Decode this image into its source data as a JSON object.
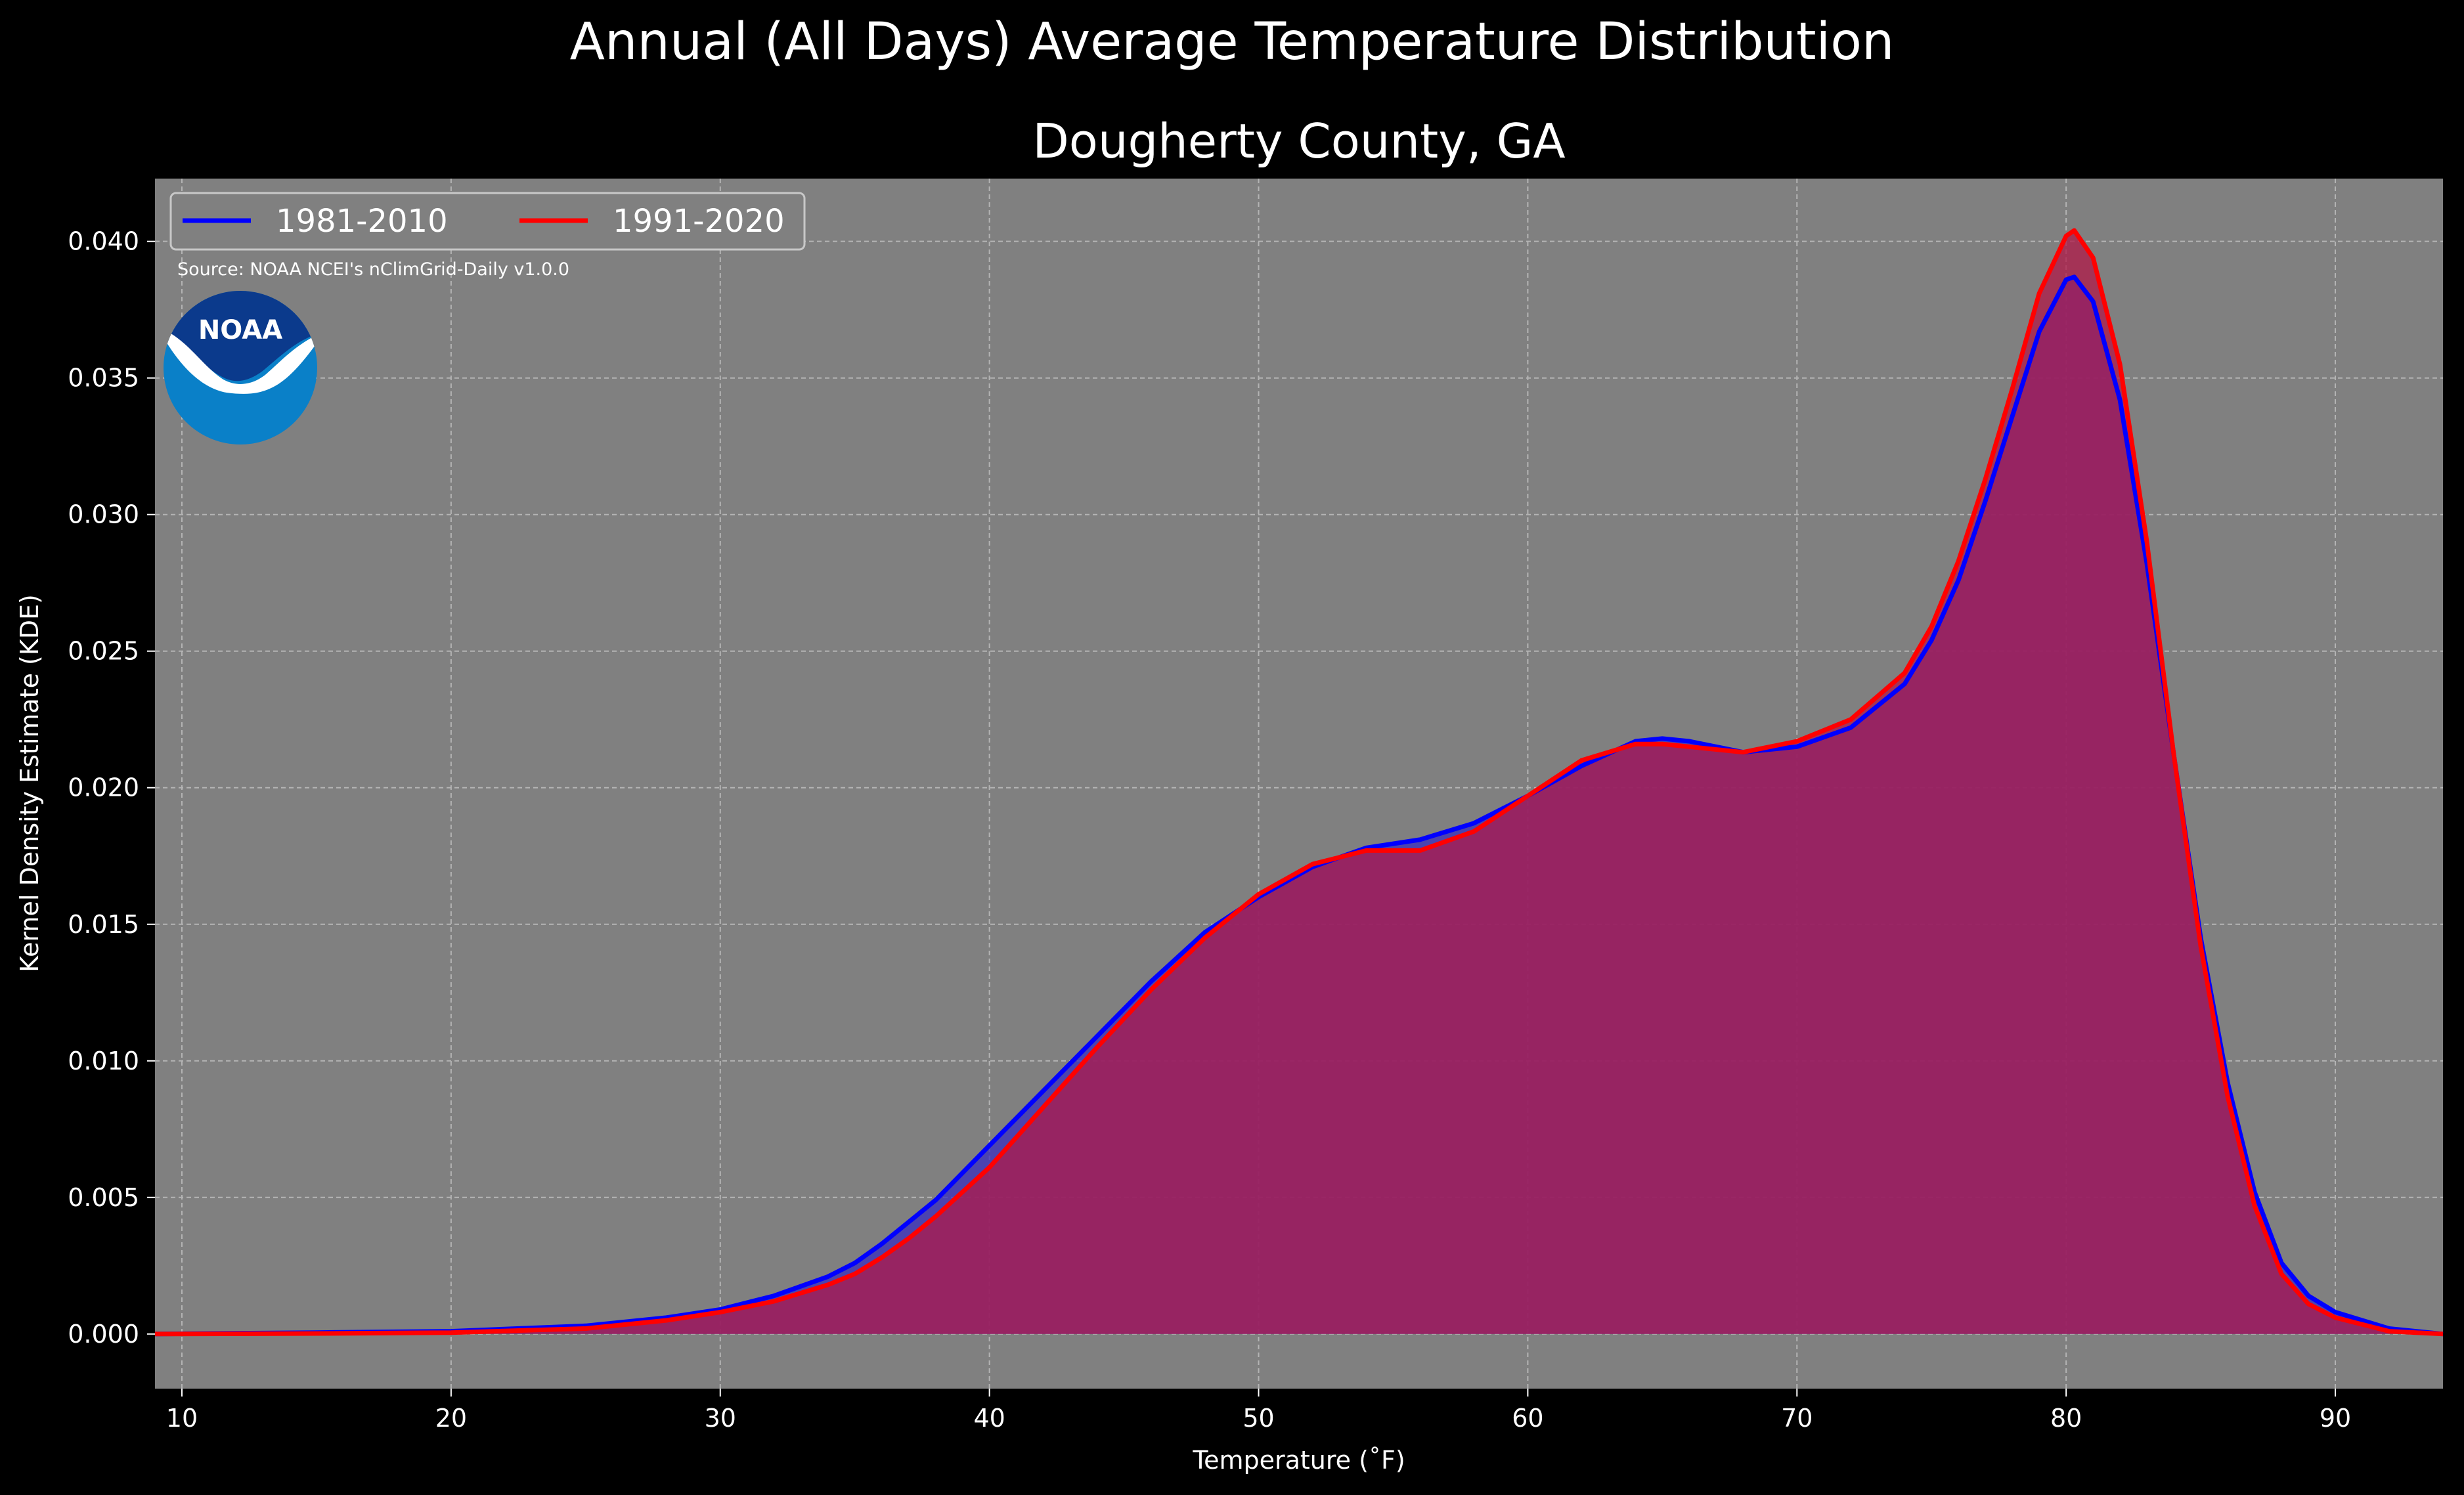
{
  "suptitle": "Annual (All Days) Average Temperature Distribution",
  "chart_data": {
    "type": "area",
    "title": "Dougherty County, GA",
    "xlabel": "Temperature ($^\\circ$F)",
    "xlabel_display": "Temperature (˚F)",
    "ylabel": "Kernel Density Estimate (KDE)",
    "xlim": [
      9,
      94
    ],
    "ylim": [
      -0.002,
      0.0423
    ],
    "xticks": [
      10,
      20,
      30,
      40,
      50,
      60,
      70,
      80,
      90
    ],
    "yticks": [
      0.0,
      0.005,
      0.01,
      0.015,
      0.02,
      0.025,
      0.03,
      0.035,
      0.04
    ],
    "ytick_labels": [
      "0.000",
      "0.005",
      "0.010",
      "0.015",
      "0.020",
      "0.025",
      "0.030",
      "0.035",
      "0.040"
    ],
    "grid": true,
    "legend_position": "top-left",
    "legend_ncol": 2,
    "background_color": "#808080",
    "figure_color": "#000000",
    "series": [
      {
        "name": "1981-2010",
        "color": "#0000ff",
        "fill_color": "#3a2fbf",
        "x": [
          9,
          15,
          20,
          25,
          28,
          30,
          32,
          34,
          35,
          36,
          37,
          38,
          40,
          42,
          44,
          46,
          48,
          50,
          52,
          54,
          56,
          58,
          60,
          62,
          64,
          65,
          66,
          68,
          70,
          72,
          74,
          75,
          76,
          77,
          78,
          79,
          80,
          80.3,
          81,
          82,
          83,
          84,
          85,
          86,
          87,
          88,
          89,
          90,
          92,
          94
        ],
        "y": [
          0.0,
          5e-05,
          0.0001,
          0.0003,
          0.0006,
          0.0009,
          0.0014,
          0.0021,
          0.0026,
          0.0033,
          0.0041,
          0.0049,
          0.0069,
          0.0089,
          0.0109,
          0.0129,
          0.0147,
          0.016,
          0.0171,
          0.0178,
          0.0181,
          0.0187,
          0.0197,
          0.0208,
          0.0217,
          0.0218,
          0.0217,
          0.0213,
          0.0215,
          0.0222,
          0.0238,
          0.0254,
          0.0276,
          0.0305,
          0.0336,
          0.0367,
          0.0386,
          0.0387,
          0.0378,
          0.0342,
          0.0282,
          0.0212,
          0.0145,
          0.0092,
          0.0052,
          0.0026,
          0.0014,
          0.0008,
          0.0002,
          0.0
        ]
      },
      {
        "name": "1991-2020",
        "color": "#ff0000",
        "fill_color": "#b01a48",
        "x": [
          9,
          15,
          20,
          25,
          28,
          30,
          32,
          34,
          35,
          36,
          37,
          38,
          40,
          42,
          44,
          46,
          48,
          50,
          52,
          54,
          56,
          58,
          60,
          62,
          64,
          65,
          66,
          68,
          70,
          72,
          74,
          75,
          76,
          77,
          78,
          79,
          80,
          80.3,
          81,
          82,
          83,
          84,
          85,
          86,
          87,
          88,
          89,
          90,
          92,
          94
        ],
        "y": [
          0.0,
          2e-05,
          5e-05,
          0.0002,
          0.0005,
          0.0008,
          0.0012,
          0.0018,
          0.0022,
          0.0028,
          0.0035,
          0.0043,
          0.0061,
          0.0083,
          0.0105,
          0.0126,
          0.0145,
          0.0161,
          0.0172,
          0.0177,
          0.0177,
          0.0184,
          0.0197,
          0.021,
          0.0216,
          0.0216,
          0.0215,
          0.0213,
          0.0217,
          0.0225,
          0.0242,
          0.0259,
          0.0283,
          0.0313,
          0.0346,
          0.0381,
          0.0402,
          0.0404,
          0.0394,
          0.0355,
          0.029,
          0.0212,
          0.0142,
          0.0087,
          0.0047,
          0.0022,
          0.0011,
          0.0006,
          0.0001,
          0.0
        ]
      }
    ],
    "annotations": {
      "source": "Source: NOAA NCEI's nClimGrid-Daily v1.0.0",
      "logo_text": "NOAA"
    }
  }
}
